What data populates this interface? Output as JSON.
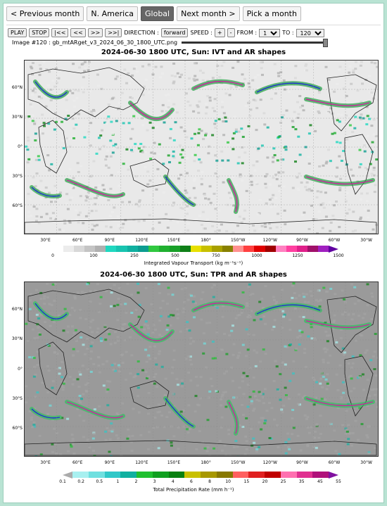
{
  "nav": {
    "buttons": [
      "< Previous month",
      "N. America",
      "Global",
      "Next month >",
      "Pick a month"
    ],
    "active": "Global"
  },
  "controls": {
    "play": "PLAY",
    "stop": "STOP",
    "first": "|<<",
    "back": "<<",
    "forward_step": ">>",
    "last": ">>|",
    "direction_label": "DIRECTION :",
    "direction_value": "forward",
    "speed_label": "SPEED :",
    "speed_plus": "+",
    "speed_minus": "-",
    "from_label": "FROM :",
    "from_value": "1",
    "to_label": "TO :",
    "to_value": "120"
  },
  "image": {
    "filename": "Image #120 : gb_mtARget_v3_2024_06_30_1800_UTC.png",
    "slider_position": 1.0
  },
  "panels": [
    {
      "title": "2024-06-30 1800 UTC, Sun: IVT and AR shapes",
      "lat_labels": [
        "60°N",
        "30°N",
        "0°",
        "30°S",
        "60°S"
      ],
      "lon_labels": [
        "30°E",
        "60°E",
        "90°E",
        "120°E",
        "150°E",
        "180°",
        "150°W",
        "120°W",
        "90°W",
        "60°W",
        "30°W"
      ],
      "colorbar_ticks": [
        "0",
        "100",
        "250",
        "500",
        "750",
        "1000",
        "1250",
        "1500"
      ],
      "colorbar_label": "Integrated Vapour Transport (kg m⁻¹s⁻¹)",
      "colors": [
        "#ffffff",
        "#ececec",
        "#d8d8d8",
        "#c4c4c4",
        "#b0b0b0",
        "#20d8c0",
        "#18c4b0",
        "#10b0a0",
        "#0c9c90",
        "#30c840",
        "#20b030",
        "#18a028",
        "#108018",
        "#e8e000",
        "#c8c000",
        "#a8a000",
        "#888000",
        "#ff9090",
        "#ff4040",
        "#e00000",
        "#a00000",
        "#ff80c0",
        "#ff40a0",
        "#e0208a",
        "#a0106a",
        "#a020c0",
        "#6000a0"
      ]
    },
    {
      "title": "2024-06-30 1800 UTC, Sun: TPR and AR shapes",
      "lat_labels": [
        "60°N",
        "30°N",
        "0°",
        "30°S",
        "60°S"
      ],
      "lon_labels": [
        "30°E",
        "60°E",
        "90°E",
        "120°E",
        "150°E",
        "180°",
        "150°W",
        "120°W",
        "90°W",
        "60°W",
        "30°W"
      ],
      "colorbar_ticks": [
        "0.1",
        "0.2",
        "0.5",
        "1",
        "2",
        "3",
        "4",
        "6",
        "8",
        "10",
        "15",
        "20",
        "25",
        "35",
        "45",
        "55"
      ],
      "colorbar_label": "Total Precipitation Rate (mm h⁻¹)",
      "colors": [
        "#a8f0f0",
        "#70e0e0",
        "#30c8c8",
        "#10b0a0",
        "#20c030",
        "#10a020",
        "#088010",
        "#c8c000",
        "#a89800",
        "#887800",
        "#ff6060",
        "#e02020",
        "#c00000",
        "#ff70b0",
        "#e03090",
        "#b0107a",
        "#8010a0"
      ]
    }
  ]
}
